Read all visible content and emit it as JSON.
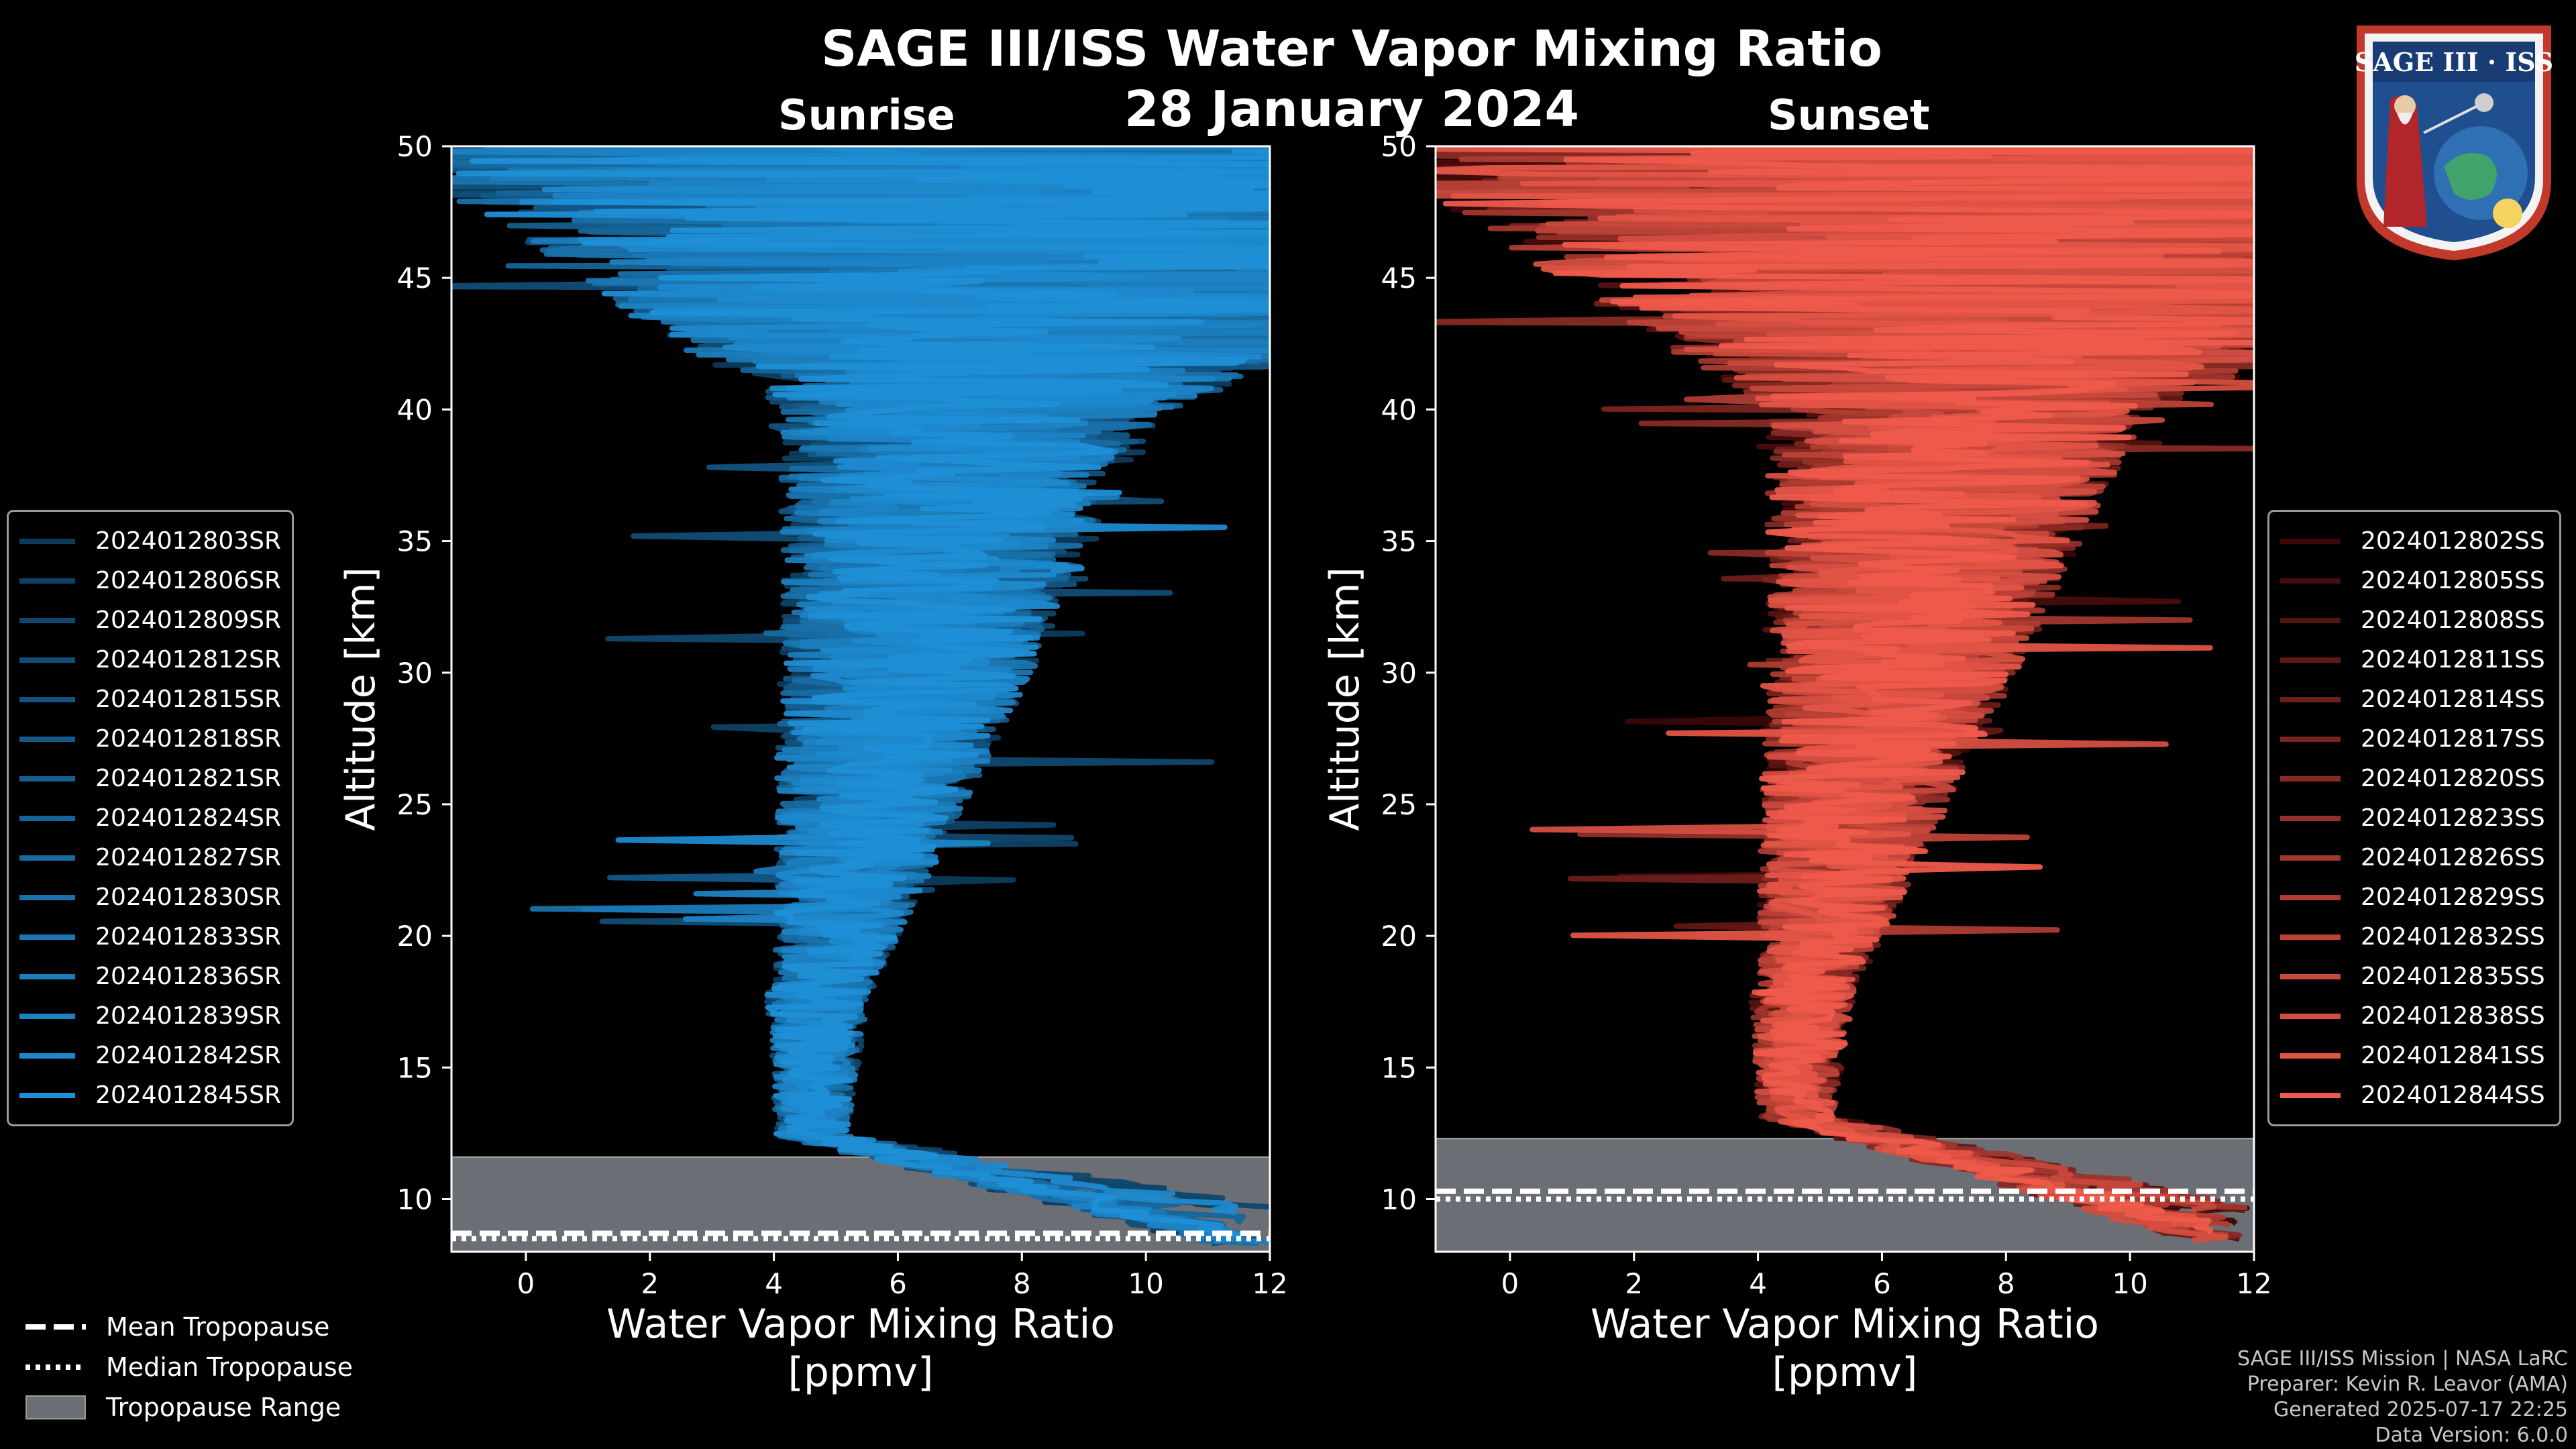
{
  "title": "SAGE III/ISS Water Vapor Mixing Ratio",
  "date": "28 January 2024",
  "logo_text": "SAGE III · ISS",
  "credits": {
    "line1": "SAGE III/ISS Mission | NASA LaRC",
    "line2": "Preparer: Kevin R. Leavor (AMA)",
    "line3": "Generated 2025-07-17 22:25",
    "line4": "Data Version: 6.0.0"
  },
  "bottom_legend": {
    "mean": "Mean Tropopause",
    "median": "Median Tropopause",
    "range": "Tropopause Range"
  },
  "colors": {
    "sunrise": "#1f8fd6",
    "sunset": "#ee5a4b",
    "range": "#6b6e74"
  },
  "chart_data": [
    {
      "type": "line",
      "title": "Sunrise",
      "xlabel": "Water Vapor Mixing Ratio [ppmv]",
      "ylabel": "Altitude [km]",
      "xlim": [
        -1.2,
        12
      ],
      "ylim": [
        8,
        50
      ],
      "xticks": [
        0,
        2,
        4,
        6,
        8,
        10,
        12
      ],
      "yticks": [
        10,
        15,
        20,
        25,
        30,
        35,
        40,
        45,
        50
      ],
      "tropopause": {
        "mean": 8.7,
        "median": 8.5,
        "range": [
          8,
          11.6
        ]
      },
      "series": [
        {
          "name": "2024012803SR"
        },
        {
          "name": "2024012806SR"
        },
        {
          "name": "2024012809SR"
        },
        {
          "name": "2024012812SR"
        },
        {
          "name": "2024012815SR"
        },
        {
          "name": "2024012818SR"
        },
        {
          "name": "2024012821SR"
        },
        {
          "name": "2024012824SR"
        },
        {
          "name": "2024012827SR"
        },
        {
          "name": "2024012830SR"
        },
        {
          "name": "2024012833SR"
        },
        {
          "name": "2024012836SR"
        },
        {
          "name": "2024012839SR"
        },
        {
          "name": "2024012842SR"
        },
        {
          "name": "2024012845SR"
        }
      ]
    },
    {
      "type": "line",
      "title": "Sunset",
      "xlabel": "Water Vapor Mixing Ratio [ppmv]",
      "ylabel": "Altitude [km]",
      "xlim": [
        -1.2,
        12
      ],
      "ylim": [
        8,
        50
      ],
      "xticks": [
        0,
        2,
        4,
        6,
        8,
        10,
        12
      ],
      "yticks": [
        10,
        15,
        20,
        25,
        30,
        35,
        40,
        45,
        50
      ],
      "tropopause": {
        "mean": 10.3,
        "median": 10.0,
        "range": [
          8,
          12.3
        ]
      },
      "series": [
        {
          "name": "2024012802SS"
        },
        {
          "name": "2024012805SS"
        },
        {
          "name": "2024012808SS"
        },
        {
          "name": "2024012811SS"
        },
        {
          "name": "2024012814SS"
        },
        {
          "name": "2024012817SS"
        },
        {
          "name": "2024012820SS"
        },
        {
          "name": "2024012823SS"
        },
        {
          "name": "2024012826SS"
        },
        {
          "name": "2024012829SS"
        },
        {
          "name": "2024012832SS"
        },
        {
          "name": "2024012835SS"
        },
        {
          "name": "2024012838SS"
        },
        {
          "name": "2024012841SS"
        },
        {
          "name": "2024012844SS"
        }
      ]
    }
  ]
}
